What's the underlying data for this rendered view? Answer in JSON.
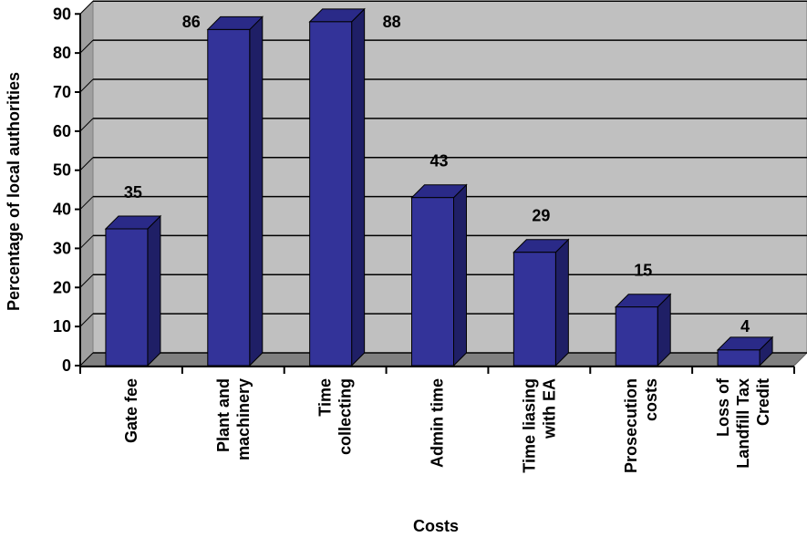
{
  "chart_data": {
    "type": "bar",
    "xlabel": "Costs",
    "ylabel": "Percentage of local authorities",
    "ylim": [
      0,
      90
    ],
    "yticks": [
      0,
      10,
      20,
      30,
      40,
      50,
      60,
      70,
      80,
      90
    ],
    "grid": true,
    "categories": [
      [
        "Gate fee"
      ],
      [
        "Plant and",
        "machinery"
      ],
      [
        "Time",
        "collecting"
      ],
      [
        "Admin time"
      ],
      [
        "Time liasing",
        "with EA"
      ],
      [
        "Prosecution",
        "costs"
      ],
      [
        "Loss of",
        "Landfill Tax",
        "Credit"
      ]
    ],
    "values": [
      35,
      86,
      88,
      43,
      29,
      15,
      4
    ],
    "data_labels": [
      "35",
      "86",
      "88",
      "43",
      "29",
      "15",
      "4"
    ],
    "colors": {
      "bar_front": "#333399",
      "bar_side": "#1f1f66",
      "bar_top": "#2a2a88",
      "plot_back": "#c0c0c0",
      "plot_floor": "#808080",
      "grid": "#000000"
    }
  }
}
